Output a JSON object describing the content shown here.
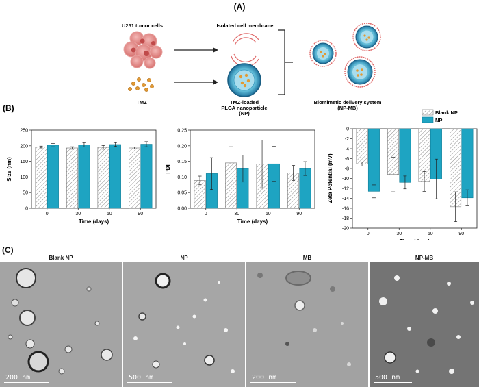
{
  "panel_a": {
    "label": "(A)",
    "tumor_cells": "U251 tumor cells",
    "membrane": "Isolated cell membrane",
    "tmz": "TMZ",
    "np_line1": "TMZ-loaded",
    "np_line2": "PLGA nanoparticle",
    "np_line3": "(NP)",
    "biomimetic_line1": "Biomimetic delivery system",
    "biomimetic_line2": "(NP-MB)"
  },
  "panel_b": {
    "label": "(B)"
  },
  "panel_c": {
    "label": "(C)",
    "images": [
      {
        "title": "Blank NP",
        "scale": "200 nm"
      },
      {
        "title": "NP",
        "scale": "500 nm"
      },
      {
        "title": "MB",
        "scale": "200 nm"
      },
      {
        "title": "NP-MB",
        "scale": "500 nm"
      }
    ]
  },
  "colors": {
    "np": "#1ea4c2",
    "blank": "#ffffff",
    "hatch": "#888888"
  },
  "chart_data": [
    {
      "type": "bar",
      "categories": [
        "0",
        "30",
        "60",
        "90"
      ],
      "xlabel": "Time (days)",
      "ylabel": "Size (nm)",
      "ylim": [
        0,
        250
      ],
      "yticks": [
        0,
        50,
        100,
        150,
        200,
        250
      ],
      "series": [
        {
          "name": "Blank NP",
          "values": [
            196,
            193,
            195,
            193
          ],
          "errors": [
            3,
            4,
            6,
            3
          ]
        },
        {
          "name": "NP",
          "values": [
            202,
            203,
            204,
            205
          ],
          "errors": [
            5,
            7,
            6,
            8
          ]
        }
      ]
    },
    {
      "type": "bar",
      "categories": [
        "0",
        "30",
        "60",
        "90"
      ],
      "xlabel": "Time (days)",
      "ylabel": "PDI",
      "ylim": [
        0,
        0.25
      ],
      "yticks": [
        "0.00",
        "0.05",
        "0.10",
        "0.15",
        "0.20",
        "0.25"
      ],
      "series": [
        {
          "name": "Blank NP",
          "values": [
            0.089,
            0.145,
            0.141,
            0.113
          ],
          "errors": [
            0.014,
            0.052,
            0.077,
            0.024
          ]
        },
        {
          "name": "NP",
          "values": [
            0.111,
            0.127,
            0.142,
            0.127
          ],
          "errors": [
            0.051,
            0.043,
            0.056,
            0.022
          ]
        }
      ]
    },
    {
      "type": "bar",
      "categories": [
        "0",
        "30",
        "60",
        "90"
      ],
      "xlabel": "Time (days)",
      "ylabel": "Zeta Potential (mV)",
      "ylim": [
        -20,
        0
      ],
      "yticks": [
        0,
        -2,
        -4,
        -6,
        -8,
        -10,
        -12,
        -14,
        -16,
        -18,
        -20
      ],
      "legend": {
        "position": "top-right",
        "entries": [
          "Blank NP",
          "NP"
        ]
      },
      "series": [
        {
          "name": "Blank NP",
          "values": [
            -7.1,
            -9.2,
            -10.6,
            -15.7
          ],
          "errors": [
            0.4,
            3.5,
            2.0,
            3.0
          ]
        },
        {
          "name": "NP",
          "values": [
            -12.6,
            -10.8,
            -10.1,
            -13.9
          ],
          "errors": [
            1.3,
            1.3,
            4.0,
            1.6
          ]
        }
      ]
    }
  ]
}
